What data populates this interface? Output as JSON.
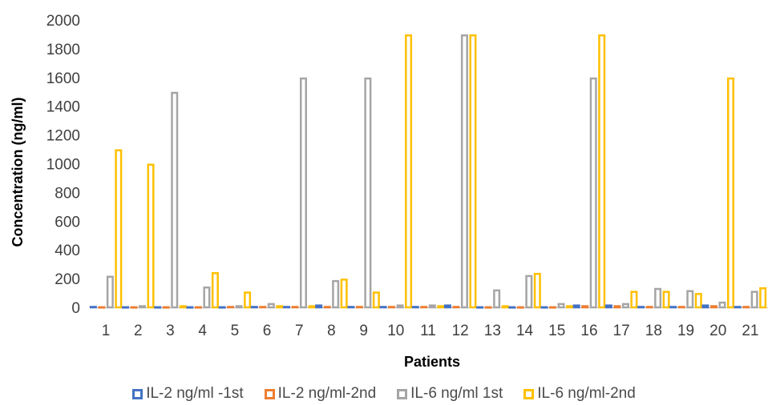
{
  "chart_data": {
    "type": "bar",
    "xlabel": "Patients",
    "ylabel": "Concentration  (ng/ml)",
    "ylim": [
      0,
      2000
    ],
    "yticks": [
      0,
      200,
      400,
      600,
      800,
      1000,
      1200,
      1400,
      1600,
      1800,
      2000
    ],
    "categories": [
      "1",
      "2",
      "3",
      "4",
      "5",
      "6",
      "7",
      "8",
      "9",
      "10",
      "11",
      "12",
      "13",
      "14",
      "15",
      "16",
      "17",
      "18",
      "19",
      "20",
      "21"
    ],
    "series": [
      {
        "name": "IL-2 ng/ml -1st",
        "color": "#4472C4",
        "values": [
          10,
          8,
          8,
          8,
          8,
          10,
          10,
          20,
          10,
          10,
          10,
          20,
          8,
          8,
          8,
          20,
          20,
          10,
          10,
          20,
          10
        ]
      },
      {
        "name": "IL-2 ng/ml-2nd",
        "color": "#ED7D31",
        "values": [
          8,
          8,
          8,
          8,
          10,
          10,
          10,
          10,
          10,
          10,
          10,
          10,
          8,
          8,
          8,
          15,
          15,
          10,
          10,
          15,
          10
        ]
      },
      {
        "name": "IL-6 ng/ml 1st",
        "color": "#A5A5A5",
        "values": [
          220,
          15,
          1500,
          145,
          15,
          30,
          1600,
          190,
          1600,
          20,
          20,
          1900,
          125,
          225,
          30,
          1600,
          30,
          135,
          120,
          40,
          115
        ]
      },
      {
        "name": "IL-6 ng/ml-2nd",
        "color": "#FFC000",
        "values": [
          1100,
          1000,
          15,
          245,
          110,
          15,
          15,
          200,
          110,
          1900,
          15,
          1900,
          15,
          240,
          15,
          1900,
          115,
          115,
          100,
          1600,
          140
        ]
      }
    ],
    "legend_position": "bottom",
    "grid": false
  }
}
